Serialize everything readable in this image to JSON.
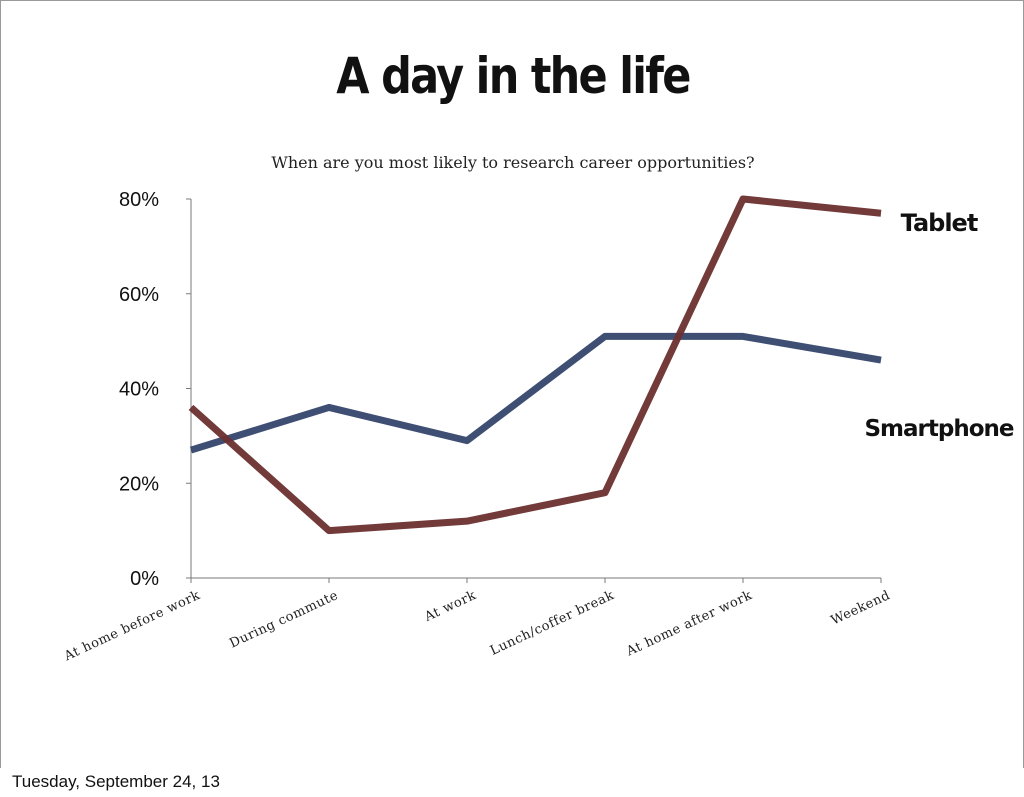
{
  "slide": {
    "title": "A day in the life",
    "subtitle": "When are you most likely to research career opportunities?"
  },
  "footer": {
    "date": "Tuesday, September 24, 13"
  },
  "chart_data": {
    "type": "line",
    "categories": [
      "At home before work",
      "During commute",
      "At work",
      "Lunch/coffer break",
      "At home after work",
      "Weekend"
    ],
    "series": [
      {
        "name": "Tablet",
        "values": [
          36,
          10,
          12,
          18,
          80,
          77
        ],
        "color": "#6b2f2f"
      },
      {
        "name": "Smartphone",
        "values": [
          27,
          36,
          29,
          51,
          51,
          46
        ],
        "color": "#34466b"
      }
    ],
    "ylim": [
      0,
      80
    ],
    "yticks": [
      "0%",
      "20%",
      "40%",
      "60%",
      "80%"
    ],
    "ytick_values": [
      0,
      20,
      40,
      60,
      80
    ],
    "xlabel": "",
    "ylabel": "",
    "grid": false,
    "legend": "direct labels at right end of lines"
  }
}
